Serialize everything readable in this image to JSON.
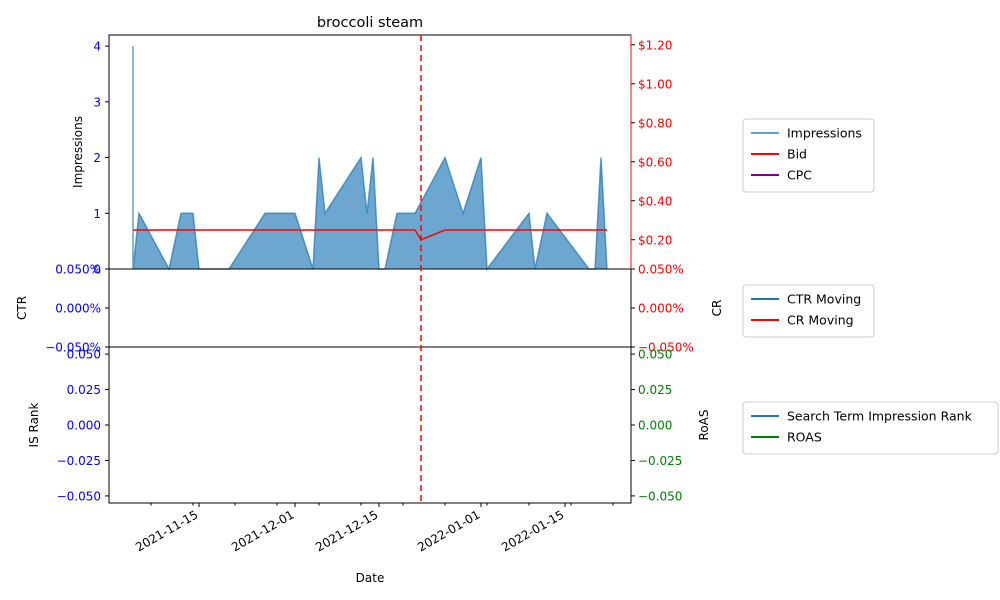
{
  "chart_data": {
    "type": "area",
    "title": "broccoli steam",
    "xlabel": "Date",
    "x_ticks": [
      "2021-11-15",
      "2021-12-01",
      "2021-12-15",
      "2022-01-01",
      "2022-01-15"
    ],
    "event_marker": {
      "date": "2021-12-22",
      "color": "#ff0000",
      "style": "dashed"
    },
    "panels": [
      {
        "id": "top",
        "ylabel_left": "Impressions",
        "ylim_left": [
          0,
          4.2
        ],
        "yticks_left": [
          "0",
          "1",
          "2",
          "3",
          "4"
        ],
        "left_tick_color": "#0000ff",
        "ylim_right": [
          0.05,
          1.25
        ],
        "yticks_right": [
          "$0.20",
          "$0.40",
          "$0.60",
          "$0.80",
          "$1.00",
          "$1.20"
        ],
        "right_tick_color": "#ff0000",
        "series": [
          {
            "name": "Impressions",
            "type": "area",
            "color": "#1f77b4",
            "axis": "left",
            "points": [
              [
                "2021-11-04",
                4
              ],
              [
                "2021-11-04",
                0
              ],
              [
                "2021-11-05",
                1
              ],
              [
                "2021-11-10",
                0
              ],
              [
                "2021-11-12",
                1
              ],
              [
                "2021-11-14",
                1
              ],
              [
                "2021-11-15",
                0
              ],
              [
                "2021-11-20",
                0
              ],
              [
                "2021-11-26",
                1
              ],
              [
                "2021-12-01",
                1
              ],
              [
                "2021-12-04",
                0
              ],
              [
                "2021-12-05",
                2
              ],
              [
                "2021-12-06",
                1
              ],
              [
                "2021-12-12",
                2
              ],
              [
                "2021-12-13",
                1
              ],
              [
                "2021-12-14",
                2
              ],
              [
                "2021-12-15",
                0
              ],
              [
                "2021-12-16",
                0
              ],
              [
                "2021-12-18",
                1
              ],
              [
                "2021-12-21",
                1
              ],
              [
                "2021-12-26",
                2
              ],
              [
                "2021-12-29",
                1
              ],
              [
                "2022-01-01",
                2
              ],
              [
                "2022-01-02",
                0
              ],
              [
                "2022-01-09",
                1
              ],
              [
                "2022-01-10",
                0
              ],
              [
                "2022-01-12",
                1
              ],
              [
                "2022-01-19",
                0
              ],
              [
                "2022-01-20",
                0
              ],
              [
                "2022-01-21",
                2
              ],
              [
                "2022-01-22",
                0
              ]
            ]
          },
          {
            "name": "Bid",
            "type": "line",
            "color": "#ff0000",
            "axis": "right",
            "points": [
              [
                "2021-11-04",
                0.25
              ],
              [
                "2021-12-21",
                0.25
              ],
              [
                "2021-12-22",
                0.2
              ],
              [
                "2021-12-26",
                0.25
              ],
              [
                "2022-01-22",
                0.25
              ]
            ]
          },
          {
            "name": "CPC",
            "type": "line",
            "color": "#800080",
            "axis": "right",
            "points": []
          }
        ]
      },
      {
        "id": "middle",
        "ylabel_left": "CTR",
        "ylabel_right": "CR",
        "ylim": [
          -0.05,
          0.05
        ],
        "yticks_left": [
          "-0.050%",
          "0.000%",
          "0.050%"
        ],
        "yticks_right": [
          "-0.050%",
          "0.000%",
          "0.050%"
        ],
        "left_tick_color": "#0000ff",
        "right_tick_color": "#ff0000",
        "series": [
          {
            "name": "CTR Moving",
            "type": "line",
            "color": "#1f77b4",
            "points": []
          },
          {
            "name": "CR Moving",
            "type": "line",
            "color": "#ff0000",
            "points": []
          }
        ]
      },
      {
        "id": "bottom",
        "ylabel_left": "IS Rank",
        "ylabel_right": "RoAS",
        "ylim": [
          -0.055,
          0.055
        ],
        "yticks_left": [
          "-0.050",
          "-0.025",
          "0.000",
          "0.025",
          "0.050"
        ],
        "yticks_right": [
          "-0.050",
          "-0.025",
          "0.000",
          "0.025",
          "0.050"
        ],
        "left_tick_color": "#0000ff",
        "right_tick_color": "#008000",
        "series": [
          {
            "name": "Search Term Impression Rank",
            "type": "line",
            "color": "#1f77b4",
            "points": []
          },
          {
            "name": "ROAS",
            "type": "line",
            "color": "#008000",
            "points": []
          }
        ]
      }
    ]
  }
}
